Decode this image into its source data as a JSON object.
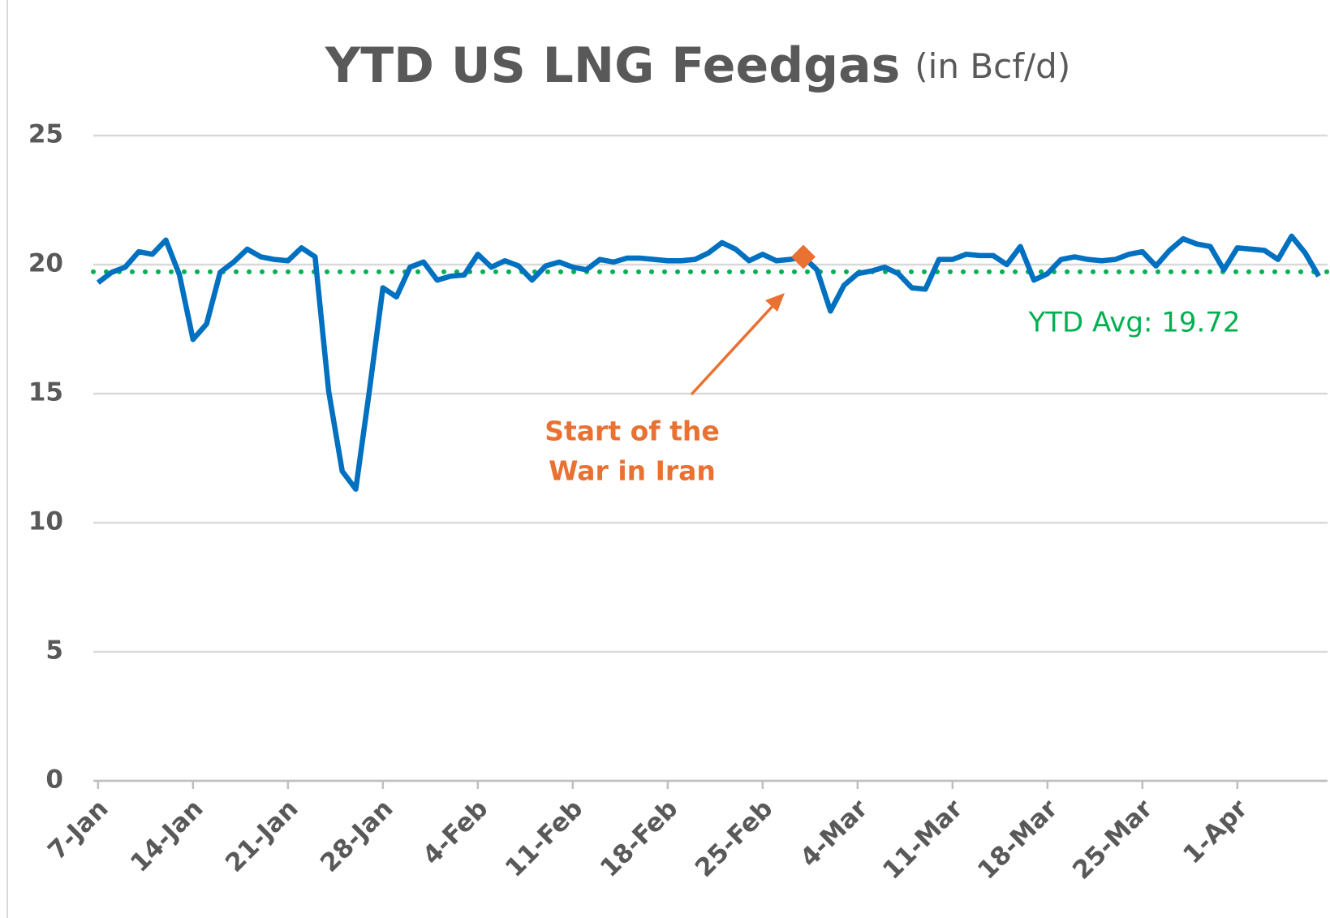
{
  "chart_data": {
    "type": "line",
    "title": "YTD US LNG Feedgas",
    "subtitle": "(in Bcf/d)",
    "categories": [
      "7-Jan",
      null,
      null,
      null,
      null,
      null,
      null,
      "14-Jan",
      null,
      null,
      null,
      null,
      null,
      null,
      "21-Jan",
      null,
      null,
      null,
      null,
      null,
      null,
      "28-Jan",
      null,
      null,
      null,
      null,
      null,
      null,
      "4-Feb",
      null,
      null,
      null,
      null,
      null,
      null,
      "11-Feb",
      null,
      null,
      null,
      null,
      null,
      null,
      "18-Feb",
      null,
      null,
      null,
      null,
      null,
      null,
      "25-Feb",
      null,
      null,
      null,
      null,
      null,
      null,
      "4-Mar",
      null,
      null,
      null,
      null,
      null,
      null,
      "11-Mar",
      null,
      null,
      null,
      null,
      null,
      null,
      "18-Mar",
      null,
      null,
      null,
      null,
      null,
      null,
      "25-Mar",
      null,
      null,
      null,
      null,
      null,
      null,
      "1-Apr",
      null,
      null,
      null,
      null,
      null,
      null
    ],
    "series": [
      {
        "color": "#0070c0",
        "values": [
          19.3,
          19.7,
          19.9,
          20.5,
          20.4,
          20.95,
          19.6,
          17.1,
          17.7,
          19.7,
          20.1,
          20.6,
          20.3,
          20.2,
          20.15,
          20.65,
          20.3,
          15.1,
          12.0,
          11.3,
          15.1,
          19.1,
          18.75,
          19.9,
          20.1,
          19.4,
          19.55,
          19.6,
          20.4,
          19.9,
          20.15,
          19.95,
          19.4,
          19.95,
          20.1,
          19.9,
          19.8,
          20.2,
          20.1,
          20.25,
          20.25,
          20.2,
          20.15,
          20.15,
          20.2,
          20.45,
          20.85,
          20.6,
          20.15,
          20.4,
          20.15,
          20.2,
          20.3,
          19.8,
          18.2,
          19.2,
          19.65,
          19.75,
          19.9,
          19.65,
          19.1,
          19.05,
          20.2,
          20.2,
          20.4,
          20.35,
          20.35,
          20.0,
          20.7,
          19.4,
          19.65,
          20.2,
          20.3,
          20.2,
          20.15,
          20.2,
          20.4,
          20.5,
          19.95,
          20.55,
          21.0,
          20.8,
          20.7,
          19.8,
          20.65,
          20.6,
          20.55,
          20.2,
          21.1,
          20.45,
          19.55
        ]
      }
    ],
    "ylim": [
      0,
      25
    ],
    "yticks": [
      0,
      5,
      10,
      15,
      20,
      25
    ],
    "grid": true,
    "average": {
      "value": 19.72,
      "label": "YTD Avg: 19.72",
      "color": "#00b050"
    },
    "annotation": {
      "text": [
        "Start of the",
        "War in Iran"
      ],
      "index": 52,
      "color": "#e97132"
    }
  }
}
